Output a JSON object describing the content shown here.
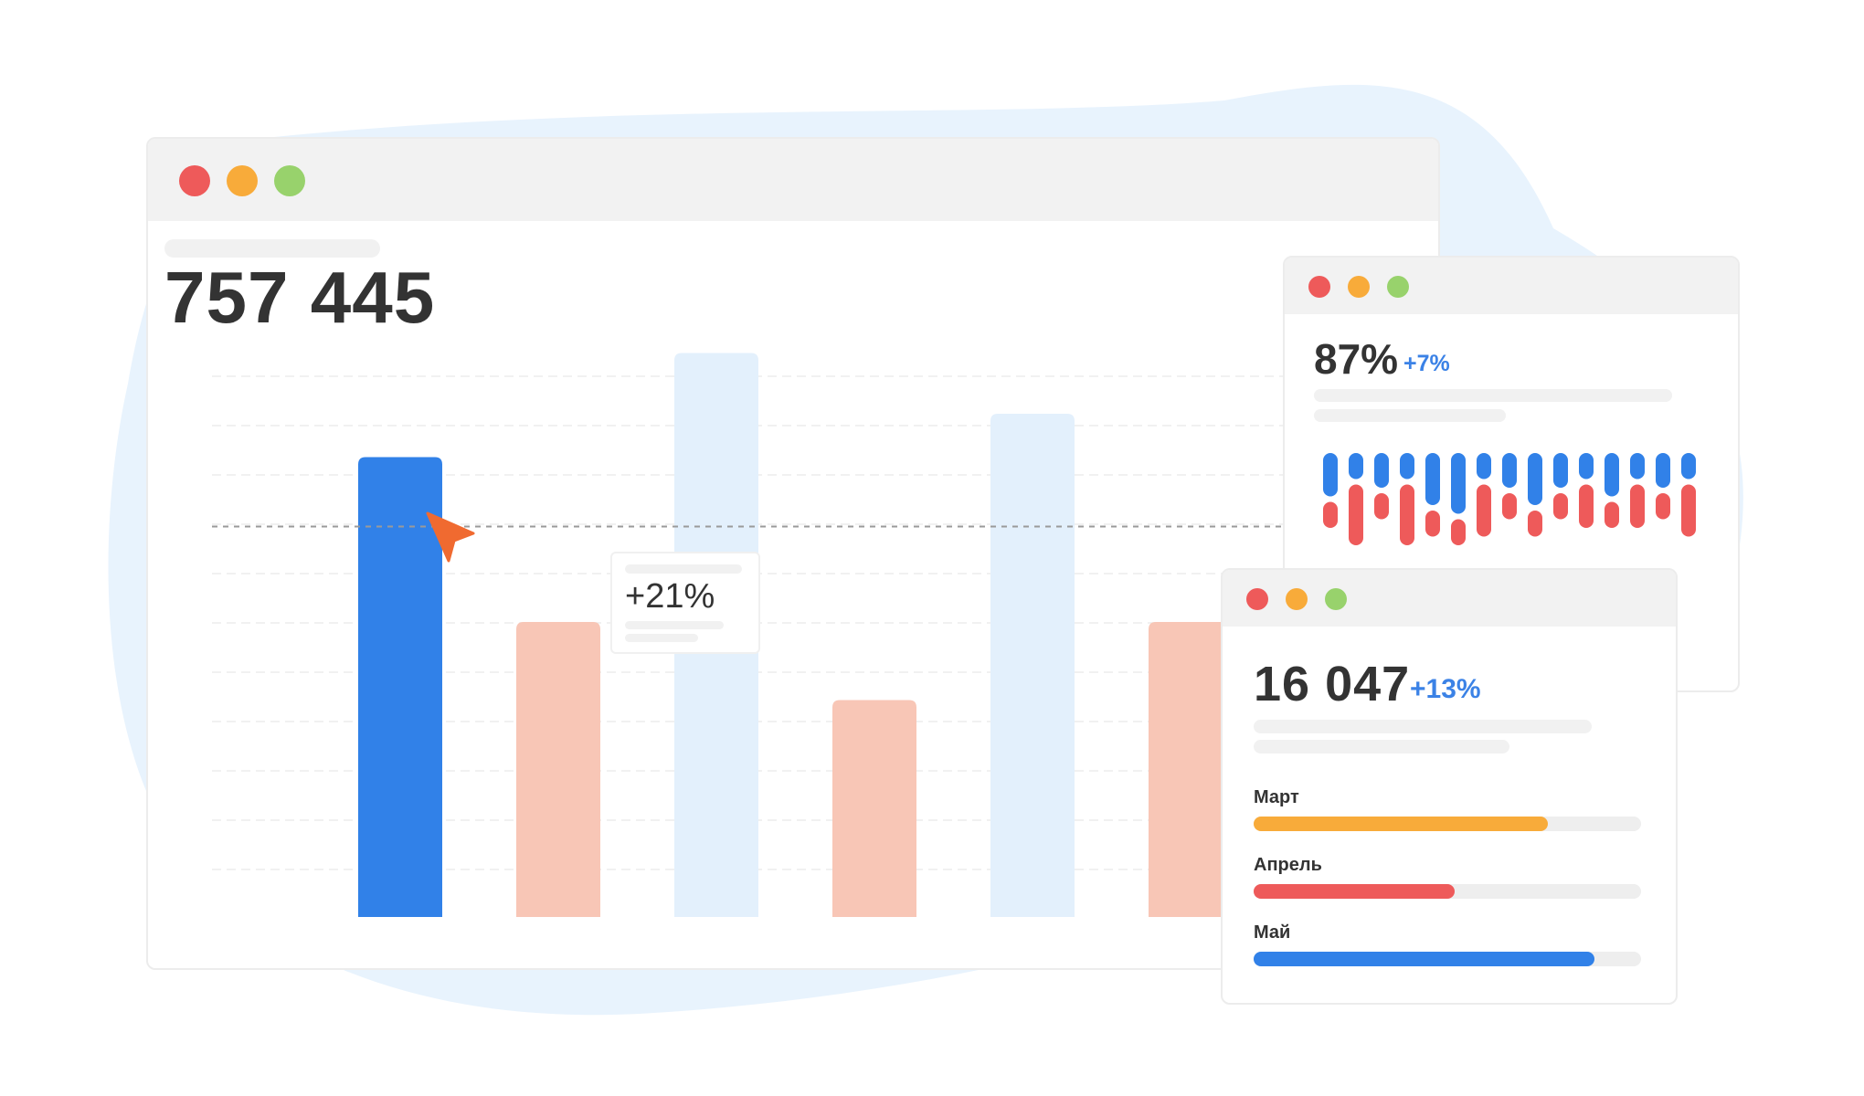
{
  "colors": {
    "red": "#ee5a5a",
    "yellow": "#f8ab3a",
    "green": "#98d26c",
    "blue": "#3181e8",
    "peach": "#f8c6b6",
    "lightblue": "#e3f0fc",
    "orange_cursor": "#f06a30",
    "accent_text": "#3b82e6"
  },
  "main_window": {
    "total": "757 445",
    "tooltip": {
      "value": "+21%"
    },
    "chart_data": {
      "type": "bar",
      "categories": [
        "",
        "",
        "",
        "",
        "",
        ""
      ],
      "values": [
        53,
        34,
        65,
        25,
        58,
        34
      ],
      "highlighted_index": 0,
      "bar_colors": [
        "blue",
        "peach",
        "lightblue",
        "peach",
        "lightblue",
        "peach"
      ],
      "reference_line": 45,
      "ylim": [
        0,
        66
      ]
    }
  },
  "pulse_window": {
    "percent": "87%",
    "delta": "+7%",
    "bars": {
      "blue_heights": [
        5,
        3,
        4,
        3,
        6,
        7,
        3,
        4,
        6,
        4,
        3,
        5,
        3,
        4,
        3
      ],
      "red_heights": [
        3,
        7,
        3,
        7,
        3,
        3,
        6,
        3,
        3,
        3,
        5,
        3,
        5,
        3,
        6
      ]
    }
  },
  "monthly_window": {
    "count": "16 047",
    "delta": "+13%",
    "months": [
      {
        "label": "Март",
        "progress": 0.76,
        "color": "yellow"
      },
      {
        "label": "Апрель",
        "progress": 0.52,
        "color": "red"
      },
      {
        "label": "Май",
        "progress": 0.88,
        "color": "blue"
      }
    ]
  }
}
